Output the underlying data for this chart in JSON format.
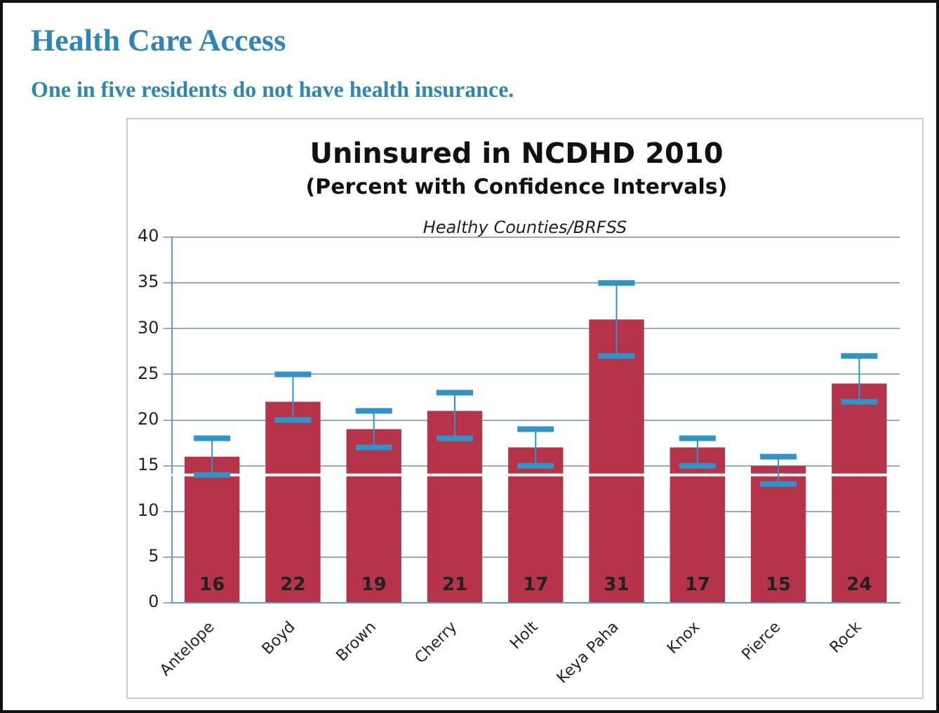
{
  "chart_data": {
    "type": "bar",
    "title": "Uninsured in NCDHD 2010",
    "subtitle": "(Percent with Confidence Intervals)",
    "annotations": [
      "Health Care Access",
      "One in five residents do not have health insurance.",
      "Healthy Counties/BRFSS"
    ],
    "categories": [
      "Antelope",
      "Boyd",
      "Brown",
      "Cherry",
      "Holt",
      "Keya Paha",
      "Knox",
      "Pierce",
      "Rock"
    ],
    "values": [
      16,
      22,
      19,
      21,
      17,
      31,
      17,
      15,
      24
    ],
    "color": "#b5344a",
    "errors": [
      [
        14,
        18
      ],
      [
        20,
        25
      ],
      [
        17,
        21
      ],
      [
        18,
        23
      ],
      [
        15,
        19
      ],
      [
        27,
        35
      ],
      [
        15,
        18
      ],
      [
        13,
        16
      ],
      [
        22,
        27
      ]
    ],
    "ylim": [
      0,
      40
    ],
    "yticks": [
      0,
      5,
      10,
      15,
      20,
      25,
      30,
      35,
      40
    ],
    "grid": "y",
    "data_labels": true,
    "ref_lines": [
      {
        "axis": "y",
        "value": 14,
        "color": "#ffffff"
      }
    ]
  }
}
